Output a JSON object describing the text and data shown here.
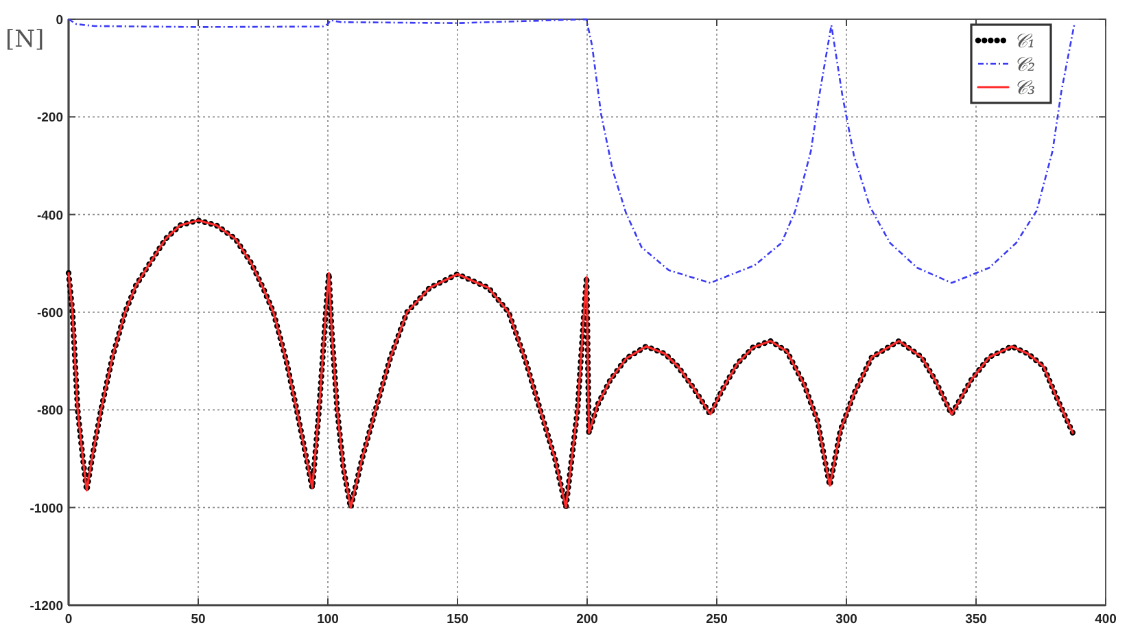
{
  "chart_data": {
    "type": "line",
    "ylabel": "[N]",
    "x": [
      0,
      1.5,
      3.5,
      5.5,
      7,
      9,
      12.5,
      17,
      21.8,
      26,
      31.3,
      37.4,
      43,
      50,
      57,
      64.4,
      70.5,
      75,
      79,
      84,
      88,
      91,
      94,
      96.6,
      99.2,
      100.4,
      101.5,
      103.6,
      106,
      108.8,
      113.2,
      118.4,
      124,
      130.5,
      139.3,
      150,
      161.9,
      169.7,
      176,
      181.9,
      187.6,
      191.8,
      196.3,
      198.8,
      199.8,
      200.7,
      204,
      208.9,
      215,
      222.8,
      230,
      235,
      241,
      247.5,
      252,
      258,
      264,
      270.7,
      277,
      283.7,
      288.9,
      291.5,
      293.6,
      297.7,
      302.9,
      309.8,
      320.3,
      329,
      334.2,
      340.6,
      348.1,
      355.1,
      363.8,
      370,
      376,
      381.2,
      387.3
    ],
    "series": [
      {
        "name": "𝒞₁",
        "color": "#000000",
        "line_style": "dotted",
        "values": [
          -520,
          -600,
          -800,
          -900,
          -965,
          -900,
          -800,
          -690,
          -600,
          -545,
          -500,
          -450,
          -422,
          -412,
          -422,
          -450,
          -500,
          -550,
          -600,
          -700,
          -800,
          -880,
          -960,
          -800,
          -600,
          -520,
          -640,
          -800,
          -920,
          -1000,
          -900,
          -800,
          -695,
          -600,
          -550,
          -522,
          -550,
          -600,
          -695,
          -800,
          -900,
          -1000,
          -800,
          -600,
          -528,
          -847,
          -790,
          -739,
          -695,
          -670,
          -685,
          -711,
          -755,
          -809,
          -760,
          -705,
          -672,
          -659,
          -680,
          -748,
          -823,
          -898,
          -955,
          -842,
          -767,
          -692,
          -659,
          -692,
          -739,
          -809,
          -739,
          -692,
          -670,
          -685,
          -711,
          -776,
          -847
        ]
      },
      {
        "name": "𝒞₂",
        "color": "#3b3bf5",
        "line_style": "dashed",
        "x": [
          0,
          3,
          10,
          50,
          98,
          100,
          101,
          105,
          150,
          199.7,
          201.9,
          205.4,
          209.8,
          215,
          221,
          231.5,
          247.5,
          264.6,
          275,
          280.3,
          286.3,
          289.8,
          294.2,
          298.5,
          302.9,
          309,
          316.8,
          327.3,
          340.6,
          355.1,
          365.5,
          373.4,
          379.5,
          382.9,
          388
        ],
        "values": [
          0,
          -10,
          -14,
          -16,
          -15,
          -10,
          -2,
          -6,
          -8,
          0,
          -54,
          -195,
          -308,
          -397,
          -467,
          -514,
          -540,
          -504,
          -458,
          -392,
          -270,
          -148,
          -12,
          -158,
          -279,
          -383,
          -458,
          -509,
          -540,
          -509,
          -458,
          -392,
          -270,
          -148,
          -8
        ]
      },
      {
        "name": "𝒞₃",
        "color": "#ff2a2a",
        "line_style": "solid",
        "values": [
          -520,
          -600,
          -800,
          -900,
          -965,
          -900,
          -800,
          -690,
          -600,
          -545,
          -500,
          -450,
          -422,
          -412,
          -422,
          -450,
          -500,
          -550,
          -600,
          -700,
          -800,
          -880,
          -960,
          -800,
          -600,
          -520,
          -640,
          -800,
          -920,
          -1000,
          -900,
          -800,
          -695,
          -600,
          -550,
          -522,
          -550,
          -600,
          -695,
          -800,
          -900,
          -1000,
          -800,
          -600,
          -528,
          -847,
          -790,
          -739,
          -695,
          -670,
          -685,
          -711,
          -755,
          -809,
          -760,
          -705,
          -672,
          -659,
          -680,
          -748,
          -823,
          -898,
          -955,
          -842,
          -767,
          -692,
          -659,
          -692,
          -739,
          -809,
          -739,
          -692,
          -670,
          -685,
          -711,
          -776,
          -847
        ]
      }
    ],
    "xlim": [
      0,
      400
    ],
    "ylim": [
      -1200,
      0
    ],
    "xticks": [
      0,
      50,
      100,
      150,
      200,
      250,
      300,
      350,
      400
    ],
    "yticks": [
      -1200,
      -1000,
      -800,
      -600,
      -400,
      -200,
      0
    ],
    "grid": true,
    "legend": "top right"
  }
}
